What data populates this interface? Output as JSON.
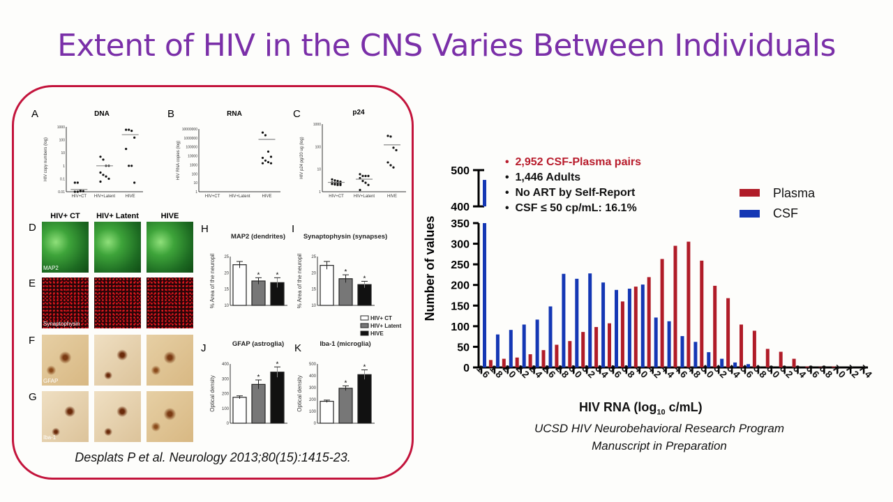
{
  "title": "Extent of HIV in the CNS Varies Between Individuals",
  "citation": "Desplats P et al. Neurology 2013;80(15):1415-23.",
  "figure": {
    "panel_letters": {
      "A": "A",
      "B": "B",
      "C": "C",
      "D": "D",
      "E": "E",
      "F": "F",
      "G": "G",
      "H": "H",
      "I": "I",
      "J": "J",
      "K": "K"
    },
    "image_columns": [
      "HIV+ CT",
      "HIV+ Latent",
      "HIVE"
    ],
    "image_rows": [
      {
        "letter": "D",
        "stain": "MAP2"
      },
      {
        "letter": "E",
        "stain": "Synaptophysin"
      },
      {
        "letter": "F",
        "stain": "GFAP"
      },
      {
        "letter": "G",
        "stain": "Iba-1"
      }
    ],
    "bar_legend": [
      "HIV+ CT",
      "HIV+ Latent",
      "HIVE"
    ]
  },
  "bullets": [
    {
      "text": "2,952 CSF-Plasma pairs",
      "color": "#b81c2c"
    },
    {
      "text": "1,446 Adults",
      "color": "#111111"
    },
    {
      "text": "No ART by Self-Report",
      "color": "#111111"
    },
    {
      "text": "CSF ≤ 50 cp/mL: 16.1%",
      "color": "#111111"
    }
  ],
  "source_lines": [
    "UCSD HIV Neurobehavioral Research Program",
    "Manuscript in Preparation"
  ],
  "colors": {
    "plasma": "#b01c28",
    "csf": "#1437b4",
    "title": "#7a2fa8",
    "frame": "#c3143c"
  },
  "chart_data": [
    {
      "type": "bar",
      "xlabel": "HIV RNA (log10 c/mL)",
      "ylabel": "Number of values",
      "y_axis_broken": true,
      "yticks_lower": [
        0,
        50,
        100,
        150,
        200,
        250,
        300,
        350
      ],
      "yticks_upper": [
        400,
        500
      ],
      "categories": [
        "1.6",
        "1.8",
        "2.0",
        "2.2",
        "2.4",
        "2.6",
        "2.8",
        "3.0",
        "3.2",
        "3.4",
        "3.6",
        "3.8",
        "4.0",
        "4.2",
        "4.4",
        "4.6",
        "4.8",
        "5.0",
        "5.2",
        "5.4",
        "5.6",
        "5.8",
        "6.0",
        "6.2",
        "6.4",
        "6.6",
        "6.8",
        "7.0",
        "7.2",
        "7.4"
      ],
      "legend_position": "top-right",
      "series": [
        {
          "name": "Plasma",
          "color": "#b01c28",
          "values": [
            0,
            18,
            21,
            24,
            32,
            42,
            55,
            64,
            86,
            98,
            107,
            160,
            196,
            219,
            263,
            295,
            305,
            259,
            198,
            168,
            104,
            89,
            45,
            38,
            21,
            2,
            1,
            2,
            0,
            0
          ]
        },
        {
          "name": "CSF",
          "color": "#1437b4",
          "values": [
            473,
            80,
            91,
            104,
            116,
            148,
            227,
            215,
            228,
            206,
            188,
            191,
            201,
            121,
            112,
            76,
            62,
            37,
            21,
            12,
            8,
            0,
            0,
            0,
            0,
            0,
            0,
            0,
            0,
            0
          ]
        }
      ]
    },
    {
      "type": "scatter",
      "panel": "A",
      "title": "DNA",
      "ylabel": "HIV copy numbers (log)",
      "yscale": "log",
      "ylim": [
        0.01,
        1000
      ],
      "yticks": [
        "0.01",
        "0.1",
        "1",
        "10",
        "100",
        "1000"
      ],
      "categories": [
        "HIV+CT",
        "HIV+Latent",
        "HIVE"
      ],
      "points": [
        [
          0.05,
          0.05,
          0.012,
          0.011,
          0.01,
          0.01,
          0.011
        ],
        [
          5,
          3,
          1,
          1,
          0.3,
          0.2,
          0.15,
          0.1,
          0.06
        ],
        [
          600,
          600,
          500,
          150,
          20,
          1,
          1,
          0.05
        ]
      ],
      "means": [
        0.015,
        1,
        250
      ]
    },
    {
      "type": "scatter",
      "panel": "B",
      "title": "RNA",
      "ylabel": "HIV RNA copies (log)",
      "yscale": "log",
      "ylim": [
        1,
        10000000
      ],
      "yticks": [
        "1",
        "10",
        "100",
        "1000",
        "10000",
        "100000",
        "1000000",
        "10000000"
      ],
      "categories": [
        "HIV+CT",
        "HIV+Latent",
        "HIVE"
      ],
      "points": [
        [],
        [],
        [
          4000000,
          2000000,
          30000,
          8000,
          6000,
          3000,
          2000,
          1500,
          1500
        ]
      ],
      "means": [
        null,
        null,
        700000
      ]
    },
    {
      "type": "scatter",
      "panel": "C",
      "title": "p24",
      "ylabel": "HIV p24 pg/20 ug (log)",
      "yscale": "log",
      "ylim": [
        1,
        1000
      ],
      "yticks": [
        "1",
        "10",
        "100",
        "1000"
      ],
      "categories": [
        "HIV+CT",
        "HIV+Latent",
        "HIVE"
      ],
      "points": [
        [
          3.5,
          3.2,
          3,
          2.8,
          2.6,
          2.5,
          2.4,
          2.3,
          2.2,
          2.1,
          2,
          2
        ],
        [
          6,
          5,
          5,
          5,
          4,
          3,
          2.5,
          2,
          1.2
        ],
        [
          300,
          280,
          90,
          70,
          20,
          15,
          12
        ]
      ],
      "means": [
        2.6,
        3.6,
        120
      ]
    },
    {
      "type": "bar",
      "panel": "H",
      "title": "MAP2 (dendrites)",
      "ylabel": "% Area of the neuropil",
      "ylim": [
        10,
        25
      ],
      "yticks": [
        "10",
        "15",
        "20",
        "25"
      ],
      "categories": [
        "HIV+ CT",
        "HIV+ Latent",
        "HIVE"
      ],
      "values": [
        22.5,
        17.5,
        17
      ],
      "errors": [
        1,
        1,
        1.5
      ],
      "significant": [
        false,
        true,
        true
      ]
    },
    {
      "type": "bar",
      "panel": "I",
      "title": "Synaptophysin (synapses)",
      "ylabel": "% Area of the neuropil",
      "ylim": [
        10,
        25
      ],
      "yticks": [
        "10",
        "15",
        "20",
        "25"
      ],
      "categories": [
        "HIV+ CT",
        "HIV+ Latent",
        "HIVE"
      ],
      "values": [
        22.3,
        18.2,
        16.4
      ],
      "errors": [
        1.2,
        1.2,
        1
      ],
      "significant": [
        false,
        true,
        true
      ]
    },
    {
      "type": "bar",
      "panel": "J",
      "title": "GFAP (astroglia)",
      "ylabel": "Optical density",
      "ylim": [
        0,
        400
      ],
      "yticks": [
        "0",
        "100",
        "200",
        "300",
        "400"
      ],
      "categories": [
        "HIV+ CT",
        "HIV+ Latent",
        "HIVE"
      ],
      "values": [
        175,
        262,
        345
      ],
      "errors": [
        10,
        30,
        35
      ],
      "significant": [
        false,
        true,
        true
      ]
    },
    {
      "type": "bar",
      "panel": "K",
      "title": "Iba-1 (microglia)",
      "ylabel": "Optical density",
      "ylim": [
        0,
        500
      ],
      "yticks": [
        "0",
        "100",
        "200",
        "300",
        "400",
        "500"
      ],
      "categories": [
        "HIV+ CT",
        "HIV+ Latent",
        "HIVE"
      ],
      "values": [
        185,
        295,
        410
      ],
      "errors": [
        10,
        20,
        40
      ],
      "significant": [
        false,
        true,
        true
      ]
    }
  ]
}
